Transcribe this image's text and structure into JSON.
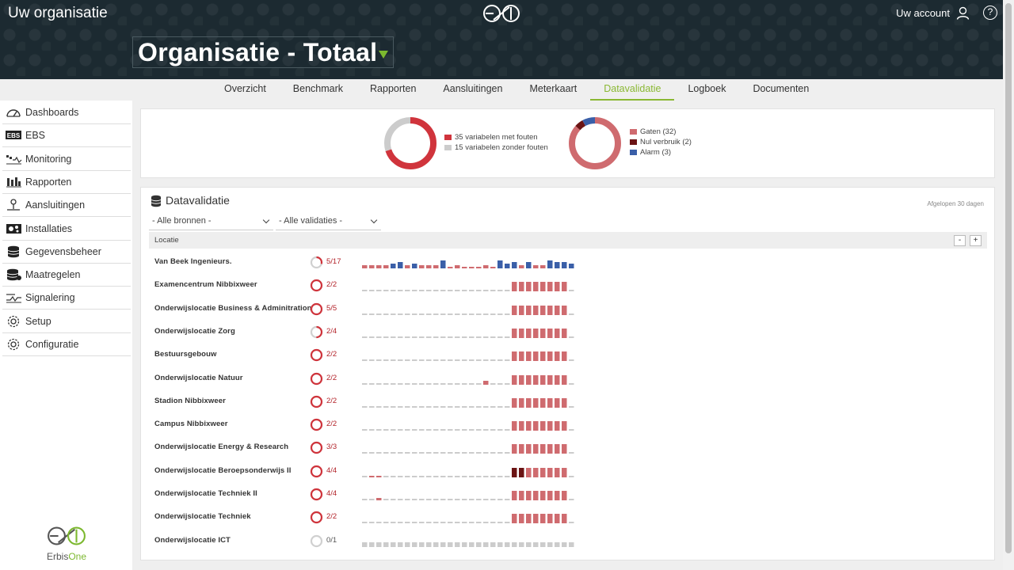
{
  "header": {
    "org_name": "Uw organisatie",
    "account_label": "Uw account",
    "help_label": "?",
    "page_title": "Organisatie - Totaal"
  },
  "tabs": [
    {
      "label": "Overzicht",
      "active": false
    },
    {
      "label": "Benchmark",
      "active": false
    },
    {
      "label": "Rapporten",
      "active": false
    },
    {
      "label": "Aansluitingen",
      "active": false
    },
    {
      "label": "Meterkaart",
      "active": false
    },
    {
      "label": "Datavalidatie",
      "active": true
    },
    {
      "label": "Logboek",
      "active": false
    },
    {
      "label": "Documenten",
      "active": false
    }
  ],
  "sidebar": {
    "items": [
      {
        "label": "Dashboards",
        "icon": "gauge-icon"
      },
      {
        "label": "EBS",
        "icon": "ebs-icon"
      },
      {
        "label": "Monitoring",
        "icon": "monitoring-icon"
      },
      {
        "label": "Rapporten",
        "icon": "report-icon"
      },
      {
        "label": "Aansluitingen",
        "icon": "connection-icon"
      },
      {
        "label": "Installaties",
        "icon": "installation-icon"
      },
      {
        "label": "Gegevensbeheer",
        "icon": "database-icon"
      },
      {
        "label": "Maatregelen",
        "icon": "measures-icon"
      },
      {
        "label": "Signalering",
        "icon": "signal-icon"
      },
      {
        "label": "Setup",
        "icon": "gear-icon"
      },
      {
        "label": "Configuratie",
        "icon": "gear-icon"
      }
    ],
    "brand": {
      "part1": "Erbis",
      "part2": "One"
    }
  },
  "summary": {
    "donut1": {
      "legend": [
        {
          "label": "35 variabelen met fouten",
          "value": 35,
          "color": "#d0343c"
        },
        {
          "label": "15 variabelen zonder fouten",
          "value": 15,
          "color": "#cccccc"
        }
      ]
    },
    "donut2": {
      "legend": [
        {
          "label": "Gaten (32)",
          "value": 32,
          "color": "#cf6b6f"
        },
        {
          "label": "Nul verbruik (2)",
          "value": 2,
          "color": "#6b1414"
        },
        {
          "label": "Alarm (3)",
          "value": 3,
          "color": "#3a5fa8"
        }
      ]
    }
  },
  "datavalidatie": {
    "title": "Datavalidatie",
    "period": "Afgelopen 30 dagen",
    "filter_sources": "- Alle bronnen -",
    "filter_validations": "- Alle validaties -",
    "column_header": "Locatie",
    "collapse_label": "-",
    "expand_label": "+",
    "rows": [
      {
        "location": "Van Beek Ingenieurs.",
        "count": "5/17",
        "fraction": 0.294,
        "pattern": "mixed"
      },
      {
        "location": "Examencentrum Nibbixweer",
        "count": "2/2",
        "fraction": 1,
        "pattern": "gaps"
      },
      {
        "location": "Onderwijslocatie Business & Adminitration",
        "count": "5/5",
        "fraction": 1,
        "pattern": "gaps"
      },
      {
        "location": "Onderwijslocatie Zorg",
        "count": "2/4",
        "fraction": 0.5,
        "pattern": "gaps"
      },
      {
        "location": "Bestuursgebouw",
        "count": "2/2",
        "fraction": 1,
        "pattern": "gaps"
      },
      {
        "location": "Onderwijslocatie Natuur",
        "count": "2/2",
        "fraction": 1,
        "pattern": "gaps_extra"
      },
      {
        "location": "Stadion Nibbixweer",
        "count": "2/2",
        "fraction": 1,
        "pattern": "gaps"
      },
      {
        "location": "Campus Nibbixweer",
        "count": "2/2",
        "fraction": 1,
        "pattern": "gaps"
      },
      {
        "location": "Onderwijslocatie Energy & Research",
        "count": "3/3",
        "fraction": 1,
        "pattern": "gaps"
      },
      {
        "location": "Onderwijslocatie Beroepsonderwijs II",
        "count": "4/4",
        "fraction": 1,
        "pattern": "beroeps"
      },
      {
        "location": "Onderwijslocatie Techniek II",
        "count": "4/4",
        "fraction": 1,
        "pattern": "techniek2"
      },
      {
        "location": "Onderwijslocatie Techniek",
        "count": "2/2",
        "fraction": 1,
        "pattern": "gaps"
      },
      {
        "location": "Onderwijslocatie ICT",
        "count": "0/1",
        "fraction": 0,
        "pattern": "empty"
      }
    ]
  },
  "colors": {
    "accent_green": "#8ab833",
    "error_red": "#d0343c",
    "gap_red": "#cf6b6f",
    "zero_dark": "#6b1414",
    "alarm_blue": "#3a5fa8"
  }
}
